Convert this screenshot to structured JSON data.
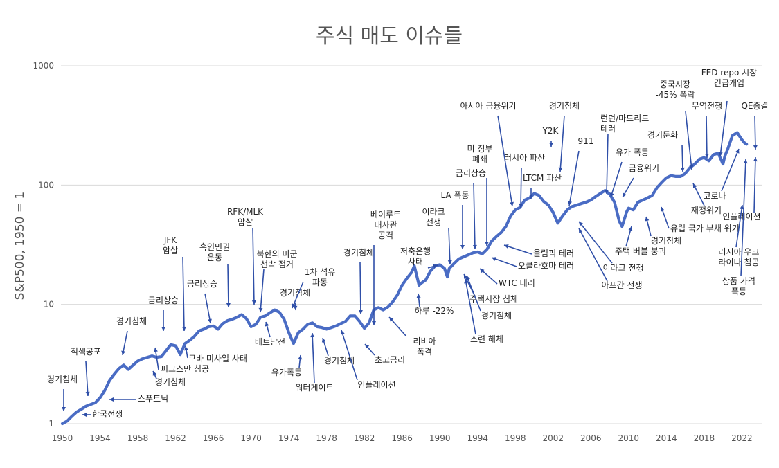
{
  "chart_data": {
    "type": "line",
    "title": "주식 매도 이슈들",
    "ylabel": "S&P500, 1950 = 1",
    "xlabel": "",
    "yscale": "log",
    "ylim": [
      1,
      1000
    ],
    "xlim": [
      1950,
      2023
    ],
    "y_ticks": [
      "1",
      "10",
      "100",
      "1000"
    ],
    "y_tick_values": [
      1,
      10,
      100,
      1000
    ],
    "x_ticks": [
      "1950",
      "1954",
      "1958",
      "1962",
      "1966",
      "1970",
      "1974",
      "1978",
      "1982",
      "1986",
      "1990",
      "1994",
      "1998",
      "2002",
      "2006",
      "2010",
      "2014",
      "2018",
      "2022"
    ],
    "x_tick_values": [
      1950,
      1954,
      1958,
      1962,
      1966,
      1970,
      1974,
      1978,
      1982,
      1986,
      1990,
      1994,
      1998,
      2002,
      2006,
      2010,
      2014,
      2018,
      2022
    ],
    "grid": true,
    "line_color": "#4a6cc4",
    "arrow_color": "#2f4fa8",
    "series": [
      {
        "x": [
          1950,
          1950.5,
          1951,
          1951.5,
          1952,
          1952.5,
          1953,
          1953.5,
          1954,
          1954.5,
          1955,
          1955.5,
          1956,
          1956.5,
          1957,
          1957.5,
          1958,
          1958.5,
          1959,
          1959.5,
          1960,
          1960.5,
          1961,
          1961.5,
          1962,
          1962.5,
          1963,
          1963.5,
          1964,
          1964.5,
          1965,
          1965.5,
          1966,
          1966.5,
          1967,
          1967.5,
          1968,
          1968.5,
          1969,
          1969.5,
          1970,
          1970.5,
          1971,
          1971.5,
          1972,
          1972.5,
          1973,
          1973.5,
          1974,
          1974.5,
          1975,
          1975.5,
          1976,
          1976.5,
          1977,
          1977.5,
          1978,
          1978.5,
          1979,
          1979.5,
          1980,
          1980.5,
          1981,
          1981.5,
          1982,
          1982.5,
          1983,
          1983.5,
          1984,
          1984.5,
          1985,
          1985.5,
          1986,
          1986.5,
          1987,
          1987.3,
          1987.8,
          1988,
          1988.5,
          1989,
          1989.5,
          1990,
          1990.5,
          1990.8,
          1991,
          1991.5,
          1992,
          1992.5,
          1993,
          1993.5,
          1994,
          1994.5,
          1995,
          1995.5,
          1996,
          1996.5,
          1997,
          1997.5,
          1998,
          1998.5,
          1999,
          1999.5,
          2000,
          2000.5,
          2001,
          2001.5,
          2002,
          2002.5,
          2003,
          2003.5,
          2004,
          2004.5,
          2005,
          2005.5,
          2006,
          2006.5,
          2007,
          2007.5,
          2008,
          2008.5,
          2009,
          2009.3,
          2009.8,
          2010,
          2010.5,
          2011,
          2011.5,
          2012,
          2012.5,
          2013,
          2013.5,
          2014,
          2014.5,
          2015,
          2015.5,
          2016,
          2016.5,
          2017,
          2017.5,
          2018,
          2018.5,
          2019,
          2019.5,
          2020,
          2020.2,
          2020.5,
          2021,
          2021.5,
          2022,
          2022.3,
          2022.5
        ],
        "y": [
          1.0,
          1.05,
          1.15,
          1.25,
          1.32,
          1.4,
          1.45,
          1.5,
          1.65,
          1.9,
          2.3,
          2.6,
          2.9,
          3.1,
          2.85,
          3.1,
          3.35,
          3.5,
          3.6,
          3.7,
          3.6,
          3.65,
          4.1,
          4.6,
          4.5,
          3.8,
          4.7,
          5.0,
          5.4,
          6.0,
          6.2,
          6.5,
          6.6,
          6.2,
          6.9,
          7.3,
          7.5,
          7.8,
          8.2,
          7.6,
          6.5,
          6.8,
          7.8,
          8.0,
          8.5,
          9.0,
          8.6,
          7.5,
          5.8,
          4.7,
          5.8,
          6.2,
          6.8,
          7.0,
          6.5,
          6.4,
          6.2,
          6.4,
          6.6,
          6.9,
          7.2,
          8.0,
          8.0,
          7.2,
          6.3,
          7.0,
          9.0,
          9.4,
          9.0,
          9.5,
          10.5,
          12.0,
          14.5,
          16.5,
          18.5,
          21.0,
          14.5,
          15.0,
          16.0,
          19.0,
          21.0,
          21.5,
          20.0,
          17.0,
          20.0,
          22.0,
          24.0,
          25.0,
          26.0,
          27.0,
          27.5,
          26.5,
          29.0,
          34.0,
          37.0,
          40.0,
          45.0,
          55.0,
          62.0,
          65.0,
          75.0,
          78.0,
          85.0,
          82.0,
          73.0,
          68.0,
          59.0,
          48.0,
          55.0,
          62.0,
          66.0,
          68.0,
          70.0,
          72.0,
          75.0,
          80.0,
          85.0,
          90.0,
          84.0,
          72.0,
          50.0,
          45.0,
          60.0,
          64.0,
          62.0,
          72.0,
          75.0,
          78.0,
          82.0,
          95.0,
          105.0,
          115.0,
          120.0,
          118.0,
          118.0,
          125.0,
          140.0,
          150.0,
          165.0,
          170.0,
          160.0,
          180.0,
          185.0,
          150.0,
          175.0,
          200.0,
          260.0,
          275.0,
          240.0,
          225.0,
          220.0
        ]
      }
    ]
  },
  "annotations": [
    {
      "label": "경기침체"
    },
    {
      "label": "적색공포"
    },
    {
      "label": "한국전쟁"
    },
    {
      "label": "스푸트닉"
    },
    {
      "label": "경기침체"
    },
    {
      "label": "경기침체"
    },
    {
      "label": "금리상승"
    },
    {
      "label": "피그스만 침공"
    },
    {
      "label": "JFK 암살"
    },
    {
      "label": "쿠바 미사일 사태"
    },
    {
      "label": "금리상승"
    },
    {
      "label": "흑인민권 운동"
    },
    {
      "label": "RFK/MLK 암살"
    },
    {
      "label": "북한의 미군 선박 점거"
    },
    {
      "label": "베트남전"
    },
    {
      "label": "경기침체"
    },
    {
      "label": "1차 석유 파동"
    },
    {
      "label": "유가폭등"
    },
    {
      "label": "워터게이트"
    },
    {
      "label": "경기침체"
    },
    {
      "label": "인플레이션"
    },
    {
      "label": "경기침체"
    },
    {
      "label": "초고금리"
    },
    {
      "label": "베이루트 대사관 공격"
    },
    {
      "label": "리비아 폭격"
    },
    {
      "label": "저축은행 사태"
    },
    {
      "label": "하루 -22%"
    },
    {
      "label": "이라크 전쟁"
    },
    {
      "label": "LA 폭동"
    },
    {
      "label": "금리상승"
    },
    {
      "label": "미 정부 폐쇄"
    },
    {
      "label": "아시아 금융위기"
    },
    {
      "label": "소련 해체"
    },
    {
      "label": "경기침체"
    },
    {
      "label": "주택시장 침체"
    },
    {
      "label": "WTC 테러"
    },
    {
      "label": "오클라호마 테러"
    },
    {
      "label": "올림픽 테러"
    },
    {
      "label": "러시아 파산"
    },
    {
      "label": "LTCM 파산"
    },
    {
      "label": "경기침체"
    },
    {
      "label": "Y2K"
    },
    {
      "label": "911"
    },
    {
      "label": "아프간 전쟁"
    },
    {
      "label": "이라크 전쟁"
    },
    {
      "label": "런던/마드리드 테러"
    },
    {
      "label": "유가 폭등"
    },
    {
      "label": "금융위기"
    },
    {
      "label": "주택 버블 붕괴"
    },
    {
      "label": "경기침체"
    },
    {
      "label": "경기둔화"
    },
    {
      "label": "중국시장 -45% 폭락"
    },
    {
      "label": "유럽 국가 부채 위기"
    },
    {
      "label": "재정위기"
    },
    {
      "label": "무역전쟁"
    },
    {
      "label": "FED repo 시장 긴급개입"
    },
    {
      "label": "QE종결"
    },
    {
      "label": "코로나"
    },
    {
      "label": "인플레이션"
    },
    {
      "label": "러시아 우크라이나 침공"
    },
    {
      "label": "상품 가격 폭등"
    }
  ]
}
